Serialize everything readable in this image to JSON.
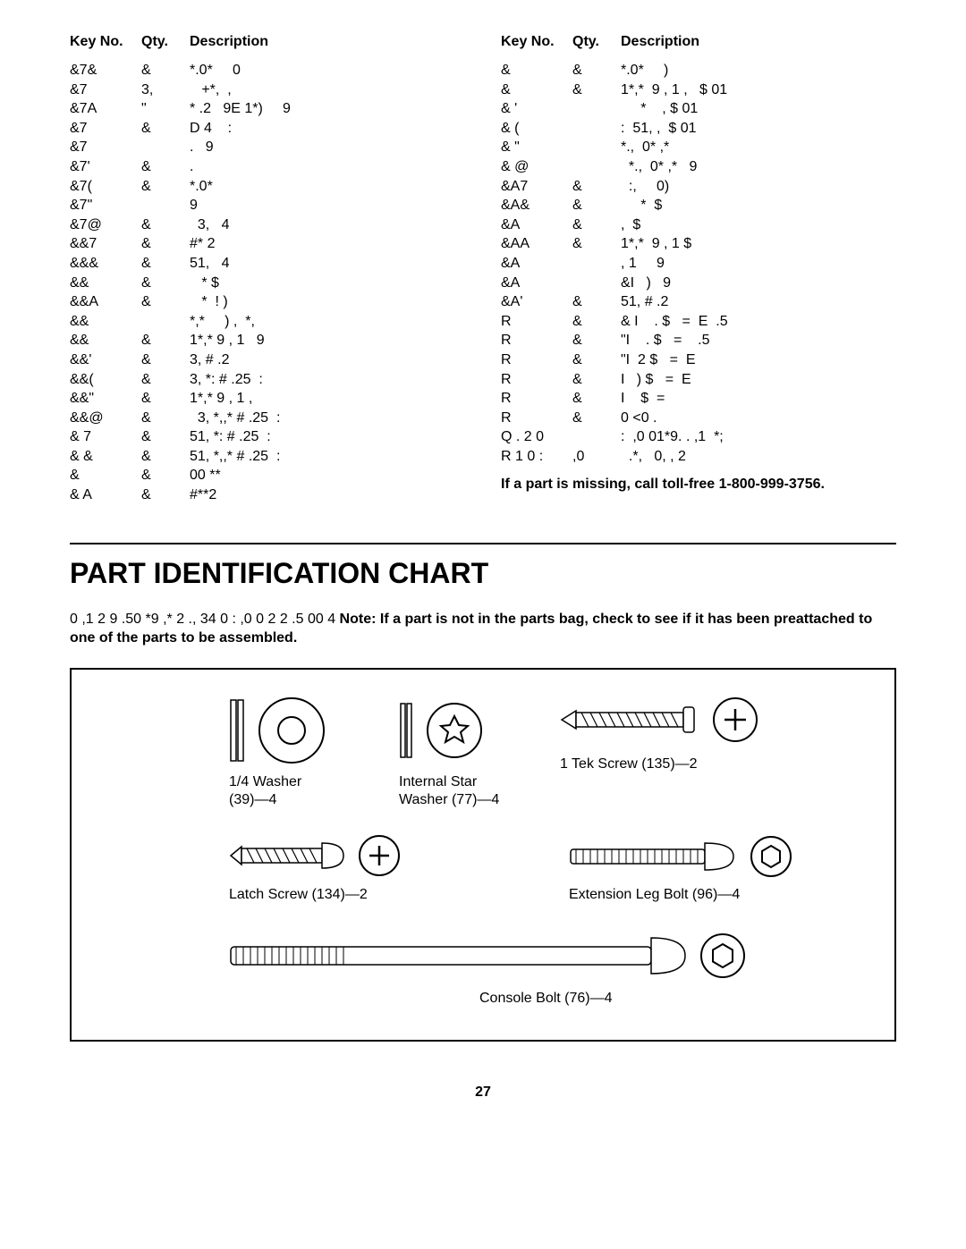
{
  "headers": {
    "key": "Key No.",
    "qty": "Qty.",
    "desc": "Description"
  },
  "left_rows": [
    {
      "key": "&7&",
      "qty": "&",
      "desc": "*.0*     0"
    },
    {
      "key": "&7",
      "qty": "3,",
      "desc": "   +*,  ,"
    },
    {
      "key": "&7A",
      "qty": "\"",
      "desc": "* .2   9E 1*)     9"
    },
    {
      "key": "&7",
      "qty": "&",
      "desc": "D 4    :"
    },
    {
      "key": "&7",
      "qty": "",
      "desc": ".   9"
    },
    {
      "key": "&7'",
      "qty": "&",
      "desc": "."
    },
    {
      "key": "&7(",
      "qty": "&",
      "desc": "*.0*"
    },
    {
      "key": "&7\"",
      "qty": "",
      "desc": "9"
    },
    {
      "key": "&7@",
      "qty": "&",
      "desc": "  3,   4"
    },
    {
      "key": "&&7",
      "qty": "&",
      "desc": "#* 2"
    },
    {
      "key": "&&&",
      "qty": "&",
      "desc": "51,   4"
    },
    {
      "key": "&&",
      "qty": "&",
      "desc": "   * $"
    },
    {
      "key": "&&A",
      "qty": "&",
      "desc": "   *  ! )"
    },
    {
      "key": "&&",
      "qty": "",
      "desc": "*,*     ) ,  *,"
    },
    {
      "key": "&&",
      "qty": "&",
      "desc": "1*,* 9 , 1   9"
    },
    {
      "key": "&&'",
      "qty": "&",
      "desc": "3, # .2"
    },
    {
      "key": "&&(",
      "qty": "&",
      "desc": "3, *: # .25  :"
    },
    {
      "key": "&&\"",
      "qty": "&",
      "desc": "1*,* 9 , 1 ,"
    },
    {
      "key": "&&@",
      "qty": "&",
      "desc": "  3, *,,* # .25  :"
    },
    {
      "key": "& 7",
      "qty": "&",
      "desc": "51, *: # .25  :"
    },
    {
      "key": "& &",
      "qty": "&",
      "desc": "51, *,,* # .25  :"
    },
    {
      "key": "&",
      "qty": "&",
      "desc": "00 **"
    },
    {
      "key": "& A",
      "qty": "&",
      "desc": "#**2"
    }
  ],
  "right_rows": [
    {
      "key": "&",
      "qty": "&",
      "desc": "*.0*     )"
    },
    {
      "key": "&",
      "qty": "&",
      "desc": "1*,*  9 , 1 ,   $ 01"
    },
    {
      "key": "& '",
      "qty": "",
      "desc": "     *    , $ 01"
    },
    {
      "key": "& (",
      "qty": "",
      "desc": ":  51, ,  $ 01"
    },
    {
      "key": "& \"",
      "qty": "",
      "desc": "*.,  0* ,*"
    },
    {
      "key": "& @",
      "qty": "",
      "desc": "  *.,  0* ,*   9"
    },
    {
      "key": "&A7",
      "qty": "&",
      "desc": "  :,     0)"
    },
    {
      "key": "&A&",
      "qty": "&",
      "desc": "     *  $"
    },
    {
      "key": "&A",
      "qty": "&",
      "desc": ",  $"
    },
    {
      "key": "&AA",
      "qty": "&",
      "desc": "1*,*  9 , 1 $"
    },
    {
      "key": "&A",
      "qty": "",
      "desc": ", 1     9"
    },
    {
      "key": "&A",
      "qty": "",
      "desc": "&I   )   9"
    },
    {
      "key": "&A'",
      "qty": "&",
      "desc": "51, # .2"
    },
    {
      "key": "R",
      "qty": "&",
      "desc": "& I    . $   =  E  .5"
    },
    {
      "key": "R",
      "qty": "&",
      "desc": "\"I    . $   =    .5"
    },
    {
      "key": "R",
      "qty": "&",
      "desc": "\"I  2 $   =  E"
    },
    {
      "key": "R",
      "qty": "&",
      "desc": "I   ) $   =  E"
    },
    {
      "key": "R",
      "qty": "&",
      "desc": "I    $  ="
    },
    {
      "key": "R",
      "qty": "&",
      "desc": "0 <0 ."
    },
    {
      "key": "Q .   2 0",
      "qty": "",
      "desc": ":  ,0 01*9. . ,1  *;"
    },
    {
      "key": "R 1 0 :",
      "qty": ",0",
      "desc": "  .*,   0, , 2"
    }
  ],
  "footnote": "If a part is missing, call toll-free 1-800-999-3756.",
  "chart_title": "PART IDENTIFICATION CHART",
  "intro_pre": "0  ,1  2  9  .50   *9 ,*  2 ., 34 0     :  ,0  0 2 2   .5 00   4               ",
  "intro_note": "Note: If a part is not in the parts bag, check to see if it has been preattached to one of the parts to be assembled.",
  "parts": {
    "washer": "1/4  Washer\n(39)—4",
    "star": "Internal Star\nWasher (77)—4",
    "tek": "1  Tek Screw (135)—2",
    "latch": "Latch Screw (134)—2",
    "ext": "Extension Leg Bolt (96)—4",
    "console": "Console Bolt (76)—4"
  },
  "page_number": "27",
  "colors": {
    "stroke": "#000000",
    "bg": "#ffffff"
  }
}
